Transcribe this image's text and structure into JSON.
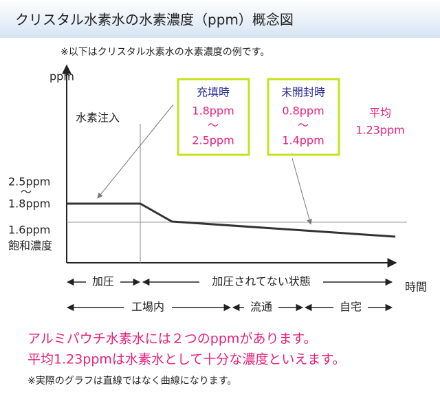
{
  "header": {
    "title": "クリスタル水素水の水素濃度（ppm）概念図"
  },
  "note": "※以下はクリスタル水素水の水素濃度の例です。",
  "diagram": {
    "y_axis_label": "ppm",
    "x_axis_label": "時間",
    "injection_label": "水素注入",
    "filling_box": {
      "title": "充填時",
      "low": "1.8ppm",
      "tilde": "～",
      "high": "2.5ppm"
    },
    "unopened_box": {
      "title": "未開封時",
      "low": "0.8ppm",
      "tilde": "～",
      "high": "1.4ppm"
    },
    "average": {
      "label": "平均",
      "value": "1.23ppm"
    },
    "left_labels": {
      "high": "2.5ppm",
      "tilde": "～",
      "low": "1.8ppm",
      "saturation_value": "1.6ppm",
      "saturation_label": "飽和濃度"
    },
    "phases": [
      "加圧",
      "加圧されてない状態"
    ],
    "places": [
      "工場内",
      "流通",
      "自宅"
    ]
  },
  "messages": [
    "アルミパウチ水素水には２つのppmがあります。",
    "平均1.23ppmは水素水として十分な濃度といえます。"
  ],
  "footnote": "※実際のグラフは直線ではなく曲線になります。"
}
